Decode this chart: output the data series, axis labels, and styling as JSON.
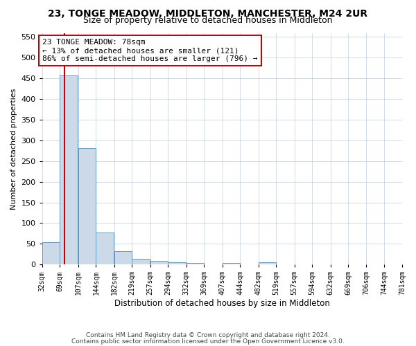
{
  "title": "23, TONGE MEADOW, MIDDLETON, MANCHESTER, M24 2UR",
  "subtitle": "Size of property relative to detached houses in Middleton",
  "xlabel": "Distribution of detached houses by size in Middleton",
  "ylabel": "Number of detached properties",
  "bar_color": "#ccd9e8",
  "bar_edge_color": "#6699bb",
  "grid_color": "#bbccdd",
  "background_color": "#ffffff",
  "bins": [
    "32sqm",
    "69sqm",
    "107sqm",
    "144sqm",
    "182sqm",
    "219sqm",
    "257sqm",
    "294sqm",
    "332sqm",
    "369sqm",
    "407sqm",
    "444sqm",
    "482sqm",
    "519sqm",
    "557sqm",
    "594sqm",
    "632sqm",
    "669sqm",
    "706sqm",
    "744sqm",
    "781sqm"
  ],
  "bin_edges": [
    32,
    69,
    107,
    144,
    182,
    219,
    257,
    294,
    332,
    369,
    407,
    444,
    482,
    519,
    557,
    594,
    632,
    669,
    706,
    744,
    781
  ],
  "values": [
    53,
    457,
    282,
    78,
    32,
    14,
    9,
    5,
    4,
    0,
    4,
    0,
    5,
    0,
    0,
    0,
    0,
    0,
    0,
    0
  ],
  "property_size": 78,
  "red_line_color": "#cc0000",
  "annotation_text": "23 TONGE MEADOW: 78sqm\n← 13% of detached houses are smaller (121)\n86% of semi-detached houses are larger (796) →",
  "annotation_box_color": "#ffffff",
  "annotation_box_edge_color": "#cc0000",
  "ylim": [
    0,
    560
  ],
  "yticks": [
    0,
    50,
    100,
    150,
    200,
    250,
    300,
    350,
    400,
    450,
    500,
    550
  ],
  "footer_line1": "Contains HM Land Registry data © Crown copyright and database right 2024.",
  "footer_line2": "Contains public sector information licensed under the Open Government Licence v3.0."
}
